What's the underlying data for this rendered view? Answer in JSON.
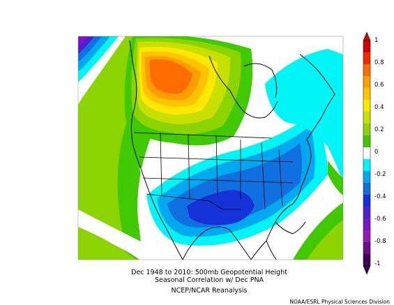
{
  "map": {
    "caption_line1": "Dec 1948 to 2010: 500mb Geopotential Height",
    "caption_line2": "Seasonal Correlation w/ Dec PNA",
    "caption_line3": "NCEP/NCAR Reanalysis",
    "credit": "NOAA/ESRL Physical Sciences Division"
  },
  "colorbar": {
    "ticks": [
      "1",
      "0.8",
      "0.6",
      "0.4",
      "0.2",
      "0",
      "-0.2",
      "-0.4",
      "-0.6",
      "-0.8",
      "-1"
    ],
    "bins": [
      {
        "range": "0.9 to 1",
        "color": "#d40000"
      },
      {
        "range": "0.8 to 0.9",
        "color": "#ef2b00"
      },
      {
        "range": "0.7 to 0.8",
        "color": "#ff6d00"
      },
      {
        "range": "0.6 to 0.7",
        "color": "#ff9e00"
      },
      {
        "range": "0.5 to 0.6",
        "color": "#ffc300"
      },
      {
        "range": "0.4 to 0.5",
        "color": "#ffe800"
      },
      {
        "range": "0.3 to 0.4",
        "color": "#c8e000"
      },
      {
        "range": "0.2 to 0.3",
        "color": "#8cd400"
      },
      {
        "range": "0.1 to 0.2",
        "color": "#40c800"
      },
      {
        "range": "-0.1 to 0.1",
        "color": "#ffffff"
      },
      {
        "range": "-0.2 to -0.1",
        "color": "#00f6f6"
      },
      {
        "range": "-0.3 to -0.2",
        "color": "#00a8f0"
      },
      {
        "range": "-0.4 to -0.3",
        "color": "#1070e0"
      },
      {
        "range": "-0.5 to -0.4",
        "color": "#1432d8"
      },
      {
        "range": "-0.6 to -0.5",
        "color": "#5020d0"
      },
      {
        "range": "-0.7 to -0.6",
        "color": "#7a14c8"
      },
      {
        "range": "-0.8 to -0.7",
        "color": "#901cb8"
      },
      {
        "range": "-0.9 to -0.8",
        "color": "#6a0f88"
      },
      {
        "range": "-1 to -0.9",
        "color": "#3e0458"
      }
    ]
  }
}
